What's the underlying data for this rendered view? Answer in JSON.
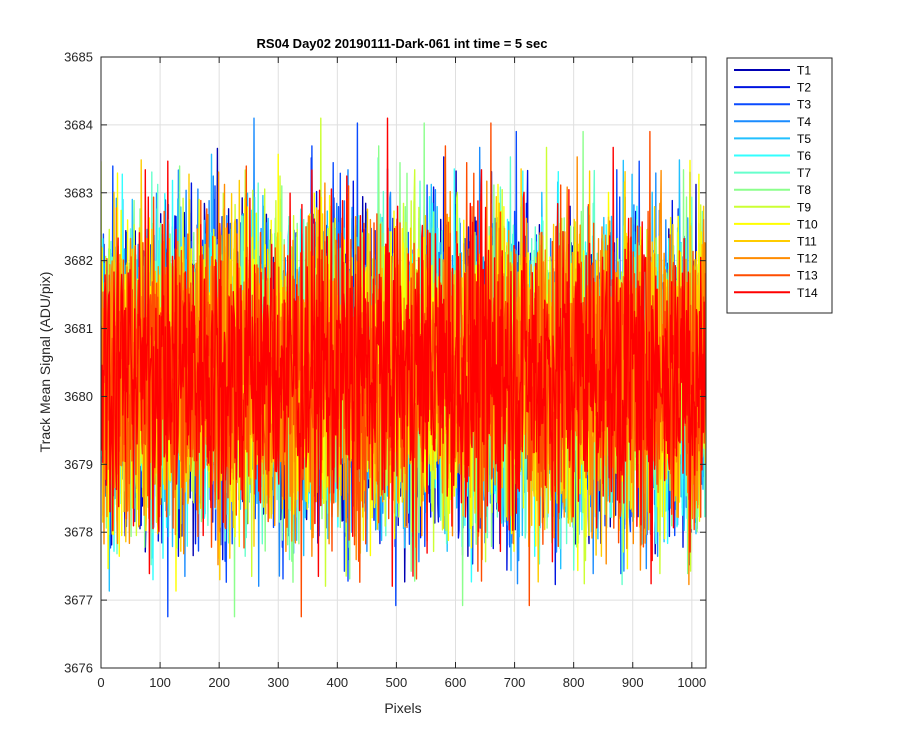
{
  "chart_data": {
    "type": "line",
    "title": "RS04 Day02 20190111-Dark-061 int time = 5 sec",
    "xlabel": "Pixels",
    "ylabel": "Track Mean Signal (ADU/pix)",
    "xlim": [
      0,
      1024
    ],
    "ylim": [
      3676,
      3685
    ],
    "xticks": [
      0,
      100,
      200,
      300,
      400,
      500,
      600,
      700,
      800,
      900,
      1000
    ],
    "yticks": [
      3676,
      3677,
      3678,
      3679,
      3680,
      3681,
      3682,
      3683,
      3684,
      3685
    ],
    "grid": true,
    "legend_position": "outside-right",
    "x_points": 1024,
    "mean": 3680.4,
    "std": 1.15,
    "series": [
      {
        "name": "T1",
        "color": "#0000b3"
      },
      {
        "name": "T2",
        "color": "#0014e0"
      },
      {
        "name": "T3",
        "color": "#0a4bff"
      },
      {
        "name": "T4",
        "color": "#1a8cff"
      },
      {
        "name": "T5",
        "color": "#22c0ff"
      },
      {
        "name": "T6",
        "color": "#33ffff"
      },
      {
        "name": "T7",
        "color": "#66ffcc"
      },
      {
        "name": "T8",
        "color": "#8cff8c"
      },
      {
        "name": "T9",
        "color": "#ccff33"
      },
      {
        "name": "T10",
        "color": "#ffff00"
      },
      {
        "name": "T11",
        "color": "#ffcc00"
      },
      {
        "name": "T12",
        "color": "#ff8c00"
      },
      {
        "name": "T13",
        "color": "#ff4d00"
      },
      {
        "name": "T14",
        "color": "#ff0000"
      }
    ]
  }
}
